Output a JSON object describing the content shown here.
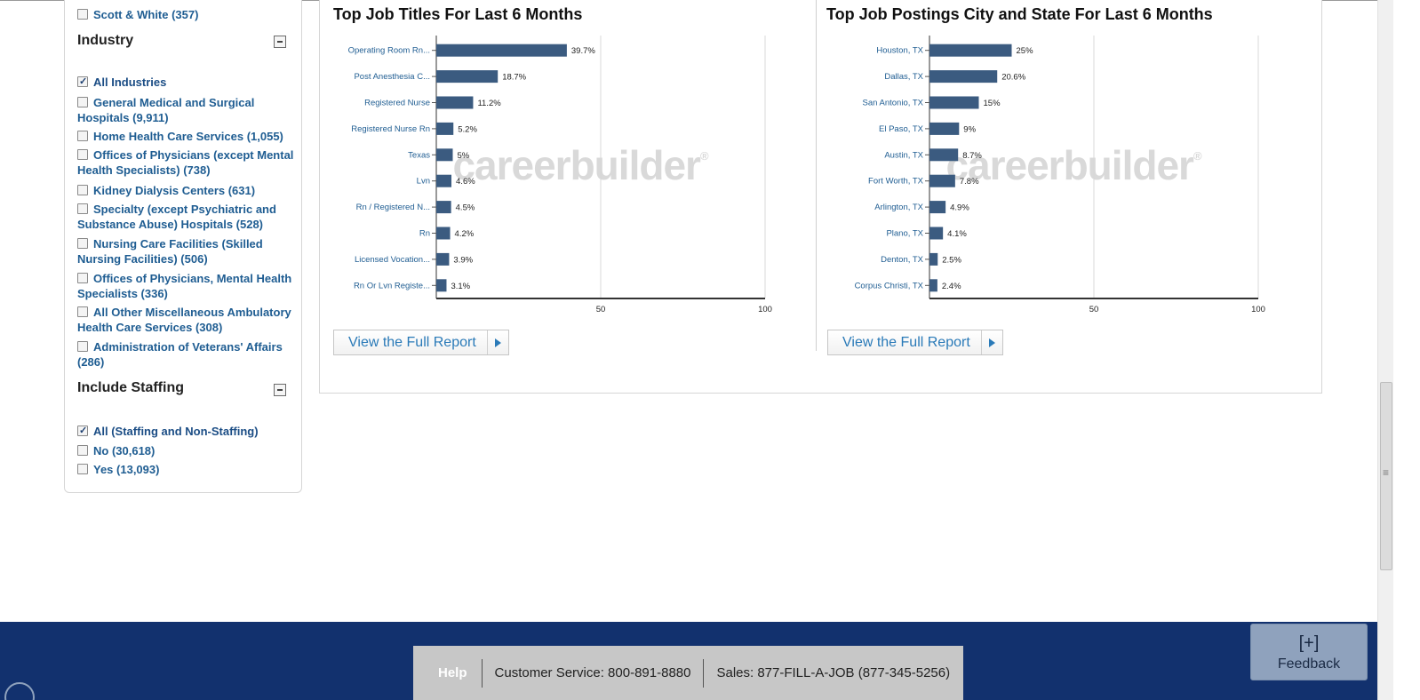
{
  "sidebar": {
    "top_item": {
      "label": "Scott & White (357)",
      "checked": false
    },
    "industry": {
      "heading": "Industry",
      "items": [
        {
          "label": "All Industries",
          "checked": true
        },
        {
          "label": "General Medical and Surgical Hospitals (9,911)",
          "checked": false
        },
        {
          "label": "Home Health Care Services (1,055)",
          "checked": false
        },
        {
          "label": "Offices of Physicians (except Mental Health Specialists) (738)",
          "checked": false
        },
        {
          "label": "Kidney Dialysis Centers (631)",
          "checked": false
        },
        {
          "label": "Specialty (except Psychiatric and Substance Abuse) Hospitals (528)",
          "checked": false
        },
        {
          "label": "Nursing Care Facilities (Skilled Nursing Facilities) (506)",
          "checked": false
        },
        {
          "label": "Offices of Physicians, Mental Health Specialists (336)",
          "checked": false
        },
        {
          "label": "All Other Miscellaneous Ambulatory Health Care Services (308)",
          "checked": false
        },
        {
          "label": "Administration of Veterans' Affairs (286)",
          "checked": false
        }
      ]
    },
    "staffing": {
      "heading": "Include Staffing",
      "items": [
        {
          "label": "All (Staffing and Non-Staffing)",
          "checked": true
        },
        {
          "label": "No (30,618)",
          "checked": false
        },
        {
          "label": "Yes (13,093)",
          "checked": false
        }
      ]
    }
  },
  "charts": {
    "watermark": "careerbuilder",
    "watermark_mark": "®",
    "report_label": "View the Full Report"
  },
  "chart_data": [
    {
      "type": "bar",
      "orientation": "horizontal",
      "title": "Top Job Titles For Last 6 Months",
      "categories": [
        "Operating Room Rn...",
        "Post Anesthesia C...",
        "Registered Nurse",
        "Registered Nurse Rn",
        "Texas",
        "Lvn",
        "Rn / Registered N...",
        "Rn",
        "Licensed Vocation...",
        "Rn Or Lvn Registe..."
      ],
      "values": [
        39.7,
        18.7,
        11.2,
        5.2,
        5,
        4.6,
        4.5,
        4.2,
        3.9,
        3.1
      ],
      "value_labels": [
        "39.7%",
        "18.7%",
        "11.2%",
        "5.2%",
        "5%",
        "4.6%",
        "4.5%",
        "4.2%",
        "3.9%",
        "3.1%"
      ],
      "xlim": [
        0,
        100
      ],
      "xticks": [
        "50",
        "100"
      ],
      "xtick_values": [
        50,
        100
      ],
      "grid": true,
      "bar_color": "#3b5b80"
    },
    {
      "type": "bar",
      "orientation": "horizontal",
      "title": "Top Job Postings City and State For Last 6 Months",
      "categories": [
        "Houston, TX",
        "Dallas, TX",
        "San Antonio, TX",
        "El Paso, TX",
        "Austin, TX",
        "Fort Worth, TX",
        "Arlington, TX",
        "Plano, TX",
        "Denton, TX",
        "Corpus Christi, TX"
      ],
      "values": [
        25,
        20.6,
        15,
        9,
        8.7,
        7.8,
        4.9,
        4.1,
        2.5,
        2.4
      ],
      "value_labels": [
        "25%",
        "20.6%",
        "15%",
        "9%",
        "8.7%",
        "7.8%",
        "4.9%",
        "4.1%",
        "2.5%",
        "2.4%"
      ],
      "xlim": [
        0,
        100
      ],
      "xticks": [
        "50",
        "100"
      ],
      "xtick_values": [
        50,
        100
      ],
      "grid": true,
      "bar_color": "#3b5b80"
    }
  ],
  "footer": {
    "help": "Help",
    "customer_service": "Customer Service: 800-891-8880",
    "sales": "Sales: 877-FILL-A-JOB (877-345-5256)",
    "feedback_icon": "[+]",
    "feedback_label": "Feedback"
  }
}
